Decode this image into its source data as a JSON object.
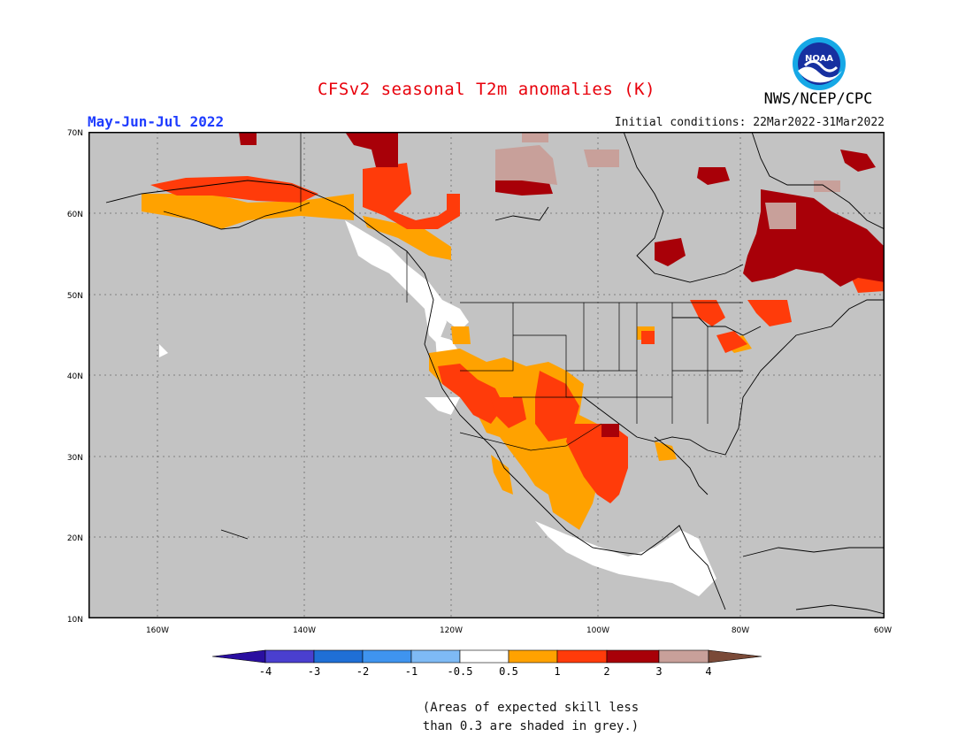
{
  "header": {
    "title": "CFSv2 seasonal T2m anomalies (K)",
    "season": "May-Jun-Jul 2022",
    "initial_conditions": "Initial conditions: 22Mar2022-31Mar2022",
    "agency": "NWS/NCEP/CPC",
    "logo_text": "NOAA"
  },
  "map": {
    "projection": "lat-lon",
    "lon_range": [
      -172,
      -60
    ],
    "lat_range": [
      10,
      70
    ],
    "background_color": "#c3c3c3",
    "lat_labels": [
      "10N",
      "20N",
      "30N",
      "40N",
      "50N",
      "60N",
      "70N"
    ],
    "lon_labels": [
      "160W",
      "140W",
      "120W",
      "100W",
      "80W",
      "60W"
    ]
  },
  "colorbar": {
    "tick_labels": [
      "-4",
      "-3",
      "-2",
      "-1",
      "-0.5",
      "0.5",
      "1",
      "2",
      "3",
      "4"
    ],
    "colors": [
      "#2a0fa0",
      "#4a3fcf",
      "#1f6fd6",
      "#3f94ef",
      "#7ebaf5",
      "#ffffff",
      "#ffa200",
      "#ff3b0a",
      "#a80008",
      "#c8a09a",
      "#7a4a38"
    ]
  },
  "note": {
    "line1": "(Areas of expected skill less",
    "line2": "than 0.3 are shaded in grey.)"
  }
}
